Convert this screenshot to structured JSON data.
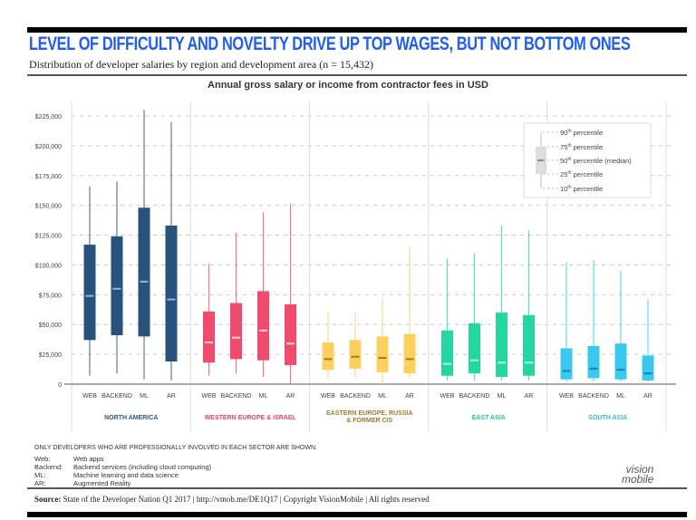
{
  "header": {
    "title": "LEVEL OF DIFFICULTY AND NOVELTY DRIVE UP TOP WAGES, BUT NOT BOTTOM ONES",
    "subtitle": "Distribution of developer salaries by region and development area (n = 15,432)"
  },
  "chart_data": {
    "type": "box",
    "title": "Annual gross salary or income from contractor fees in USD",
    "ylim": [
      0,
      225000
    ],
    "yticks": [
      "0",
      "$25,000",
      "$50,000",
      "$75,000",
      "$100,000",
      "$125,000",
      "$150,000",
      "$175,000",
      "$200,000",
      "$225,000"
    ],
    "ytick_values": [
      0,
      25000,
      50000,
      75000,
      100000,
      125000,
      150000,
      175000,
      200000,
      225000
    ],
    "grid": true,
    "categories": [
      "WEB",
      "BACKEND",
      "ML",
      "AR"
    ],
    "legend": {
      "placement": "top-right",
      "items": [
        {
          "num": "90",
          "sup": "th",
          "text": " percentile"
        },
        {
          "num": "75",
          "sup": "th",
          "text": " percentile"
        },
        {
          "num": "50",
          "sup": "th",
          "text": " percentile (median)"
        },
        {
          "num": "25",
          "sup": "th",
          "text": " percentile"
        },
        {
          "num": "10",
          "sup": "th",
          "text": " percentile"
        }
      ]
    },
    "stats_order": [
      "p10",
      "p25",
      "p50",
      "p75",
      "p90"
    ],
    "groups": [
      {
        "name": "NORTH AMERICA",
        "color": "#27527b",
        "median_color": "#8fb8e0",
        "label_color": "#2c5a86",
        "boxes": [
          [
            7000,
            37000,
            74000,
            117000,
            166000
          ],
          [
            9000,
            41000,
            80000,
            124000,
            170000
          ],
          [
            4000,
            40000,
            86000,
            148000,
            230000
          ],
          [
            3000,
            19000,
            71000,
            133000,
            220000
          ]
        ]
      },
      {
        "name": "WESTERN EUROPE & ISRAEL",
        "color": "#ef4b6f",
        "median_color": "#ffd0dc",
        "label_color": "#ee4470",
        "boxes": [
          [
            7000,
            18000,
            35000,
            61000,
            101000
          ],
          [
            9000,
            21000,
            39000,
            68000,
            127000
          ],
          [
            6000,
            20000,
            45000,
            78000,
            144000
          ],
          [
            0,
            16000,
            34000,
            67000,
            151000
          ]
        ]
      },
      {
        "name": "EASTERN EUROPE, RUSSIA & FORMER CIS",
        "color": "#fdd05e",
        "median_color": "#9c7a2c",
        "label_color": "#a07a30",
        "boxes": [
          [
            5000,
            12000,
            21000,
            35000,
            60000
          ],
          [
            5000,
            13000,
            23000,
            37000,
            60000
          ],
          [
            0,
            10000,
            22000,
            40000,
            72000
          ],
          [
            5000,
            9000,
            21000,
            42000,
            115000
          ]
        ]
      },
      {
        "name": "EAST ASIA",
        "color": "#24d6a0",
        "median_color": "#b6f5e0",
        "label_color": "#21c99a",
        "boxes": [
          [
            3000,
            7000,
            17000,
            45000,
            105000
          ],
          [
            3000,
            9000,
            20000,
            51000,
            110000
          ],
          [
            3000,
            6000,
            18000,
            60000,
            133000
          ],
          [
            3000,
            7000,
            18000,
            58000,
            129000
          ]
        ]
      },
      {
        "name": "SOUTH ASIA",
        "color": "#39c8f0",
        "median_color": "#1f7fa8",
        "label_color": "#34b8e0",
        "boxes": [
          [
            2000,
            4000,
            11000,
            30000,
            102000
          ],
          [
            2000,
            5000,
            13000,
            32000,
            104000
          ],
          [
            2000,
            4000,
            12000,
            34000,
            95000
          ],
          [
            2000,
            3000,
            9000,
            24000,
            71000
          ]
        ]
      }
    ]
  },
  "footer": {
    "note": "ONLY DEVELOPERS WHO ARE PROFESSIONALLY INVOLVED IN EACH SECTOR ARE SHOWN.",
    "definitions": [
      {
        "key": "Web:",
        "value": "Web apps"
      },
      {
        "key": "Backend:",
        "value": "Backend services (including cloud computing)"
      },
      {
        "key": "ML:",
        "value": "Machine learning and data science"
      },
      {
        "key": "AR:",
        "value": "Augmented Reality"
      }
    ],
    "logo": "vision mobile",
    "source_label": "Source:",
    "source_text": " State of the Developer Nation Q1 2017  |  http://vmob.me/DE1Q17  |  Copyright VisionMobile  |  All rights reserved"
  }
}
